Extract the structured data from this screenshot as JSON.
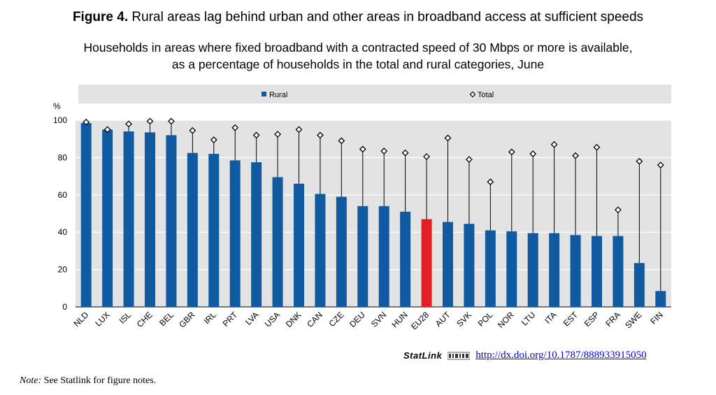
{
  "title": {
    "prefix": "Figure 4.",
    "text": "Rural areas lag behind urban and other areas in broadband access at sufficient speeds"
  },
  "subtitle": {
    "line1": "Households in areas where fixed broadband with a contracted speed of 30 Mbps or more is available,",
    "line2": "as a percentage of households in the total and rural categories, June"
  },
  "chart_data": {
    "type": "bar",
    "title": "",
    "ylabel": "%",
    "ylim": [
      0,
      100
    ],
    "yticks": [
      0,
      20,
      40,
      60,
      80,
      100
    ],
    "grid": true,
    "legend_position": "top",
    "categories": [
      "NLD",
      "LUX",
      "ISL",
      "CHE",
      "BEL",
      "GBR",
      "IRL",
      "PRT",
      "LVA",
      "USA",
      "DNK",
      "CAN",
      "CZE",
      "DEU",
      "SVN",
      "HUN",
      "EU28",
      "AUT",
      "SVK",
      "POL",
      "NOR",
      "LTU",
      "ITA",
      "EST",
      "ESP",
      "FRA",
      "SWE",
      "FIN"
    ],
    "highlight_category": "EU28",
    "series": [
      {
        "name": "Rural",
        "mark": "bar",
        "color": "#0f5aa0",
        "highlight_color": "#e31e24",
        "values": [
          98.5,
          95,
          94,
          93.5,
          92,
          82.5,
          82,
          78.5,
          77.5,
          69.5,
          66,
          60.5,
          59,
          54,
          54,
          51,
          47,
          45.5,
          44.5,
          41,
          40.5,
          39.5,
          39.5,
          38.5,
          38,
          38,
          23.5,
          8.5
        ]
      },
      {
        "name": "Total",
        "mark": "diamond",
        "color": "#000000",
        "values": [
          99,
          95,
          98,
          99.5,
          99.5,
          94.5,
          89.5,
          96,
          92,
          92.5,
          95,
          92,
          89,
          84.5,
          83.5,
          82.5,
          80.5,
          90.5,
          79,
          67,
          83,
          82,
          87,
          81,
          85.5,
          52,
          78,
          76
        ]
      }
    ]
  },
  "footer": {
    "statlink_label": "StatLink",
    "statlink_url": "http://dx.doi.org/10.1787/888933915050",
    "note_label": "Note:",
    "note_text": " See Statlink for figure notes."
  }
}
